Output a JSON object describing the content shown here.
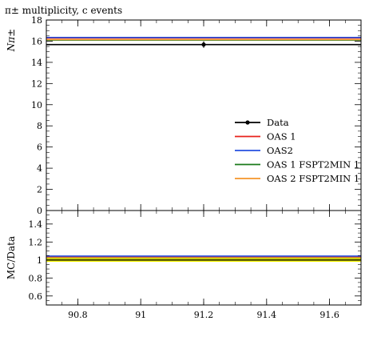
{
  "chart_data": {
    "type": "line",
    "title": "π± multiplicity, c events",
    "ylabel": "Nπ±",
    "ratio_ylabel": "MC/Data",
    "xlim": [
      90.7,
      91.7
    ],
    "ylim": [
      0,
      18
    ],
    "ratio_ylim": [
      0.5,
      1.55
    ],
    "x_ticks": [
      "90.8",
      "91",
      "91.2",
      "91.4",
      "91.6"
    ],
    "x_tick_values": [
      90.8,
      91.0,
      91.2,
      91.4,
      91.6
    ],
    "y_ticks": [
      "0",
      "2",
      "4",
      "6",
      "8",
      "10",
      "12",
      "14",
      "16",
      "18"
    ],
    "y_tick_values": [
      0,
      2,
      4,
      6,
      8,
      10,
      12,
      14,
      16,
      18
    ],
    "ratio_y_ticks": [
      "0.6",
      "0.8",
      "1",
      "1.2",
      "1.4"
    ],
    "ratio_y_tick_values": [
      0.6,
      0.8,
      1.0,
      1.2,
      1.4
    ],
    "data_point": {
      "x": 91.2,
      "y": 15.68,
      "yerr": 0.3
    },
    "series": [
      {
        "name": "Data",
        "color": "#000000",
        "y": 15.68,
        "ratio": 1.0
      },
      {
        "name": "OAS 1",
        "color": "#e8221b",
        "y": 16.3,
        "ratio": 1.04
      },
      {
        "name": "OAS2",
        "color": "#2450e0",
        "y": 16.35,
        "ratio": 1.043
      },
      {
        "name": "OAS 1 FSPT2MIN 1",
        "color": "#1a7a1a",
        "y": 16.1,
        "ratio": 1.027
      },
      {
        "name": "OAS 2 FSPT2MIN 1",
        "color": "#f5952a",
        "y": 16.15,
        "ratio": 1.03
      }
    ],
    "band_color": "#f2f200",
    "legend_position": "right"
  }
}
